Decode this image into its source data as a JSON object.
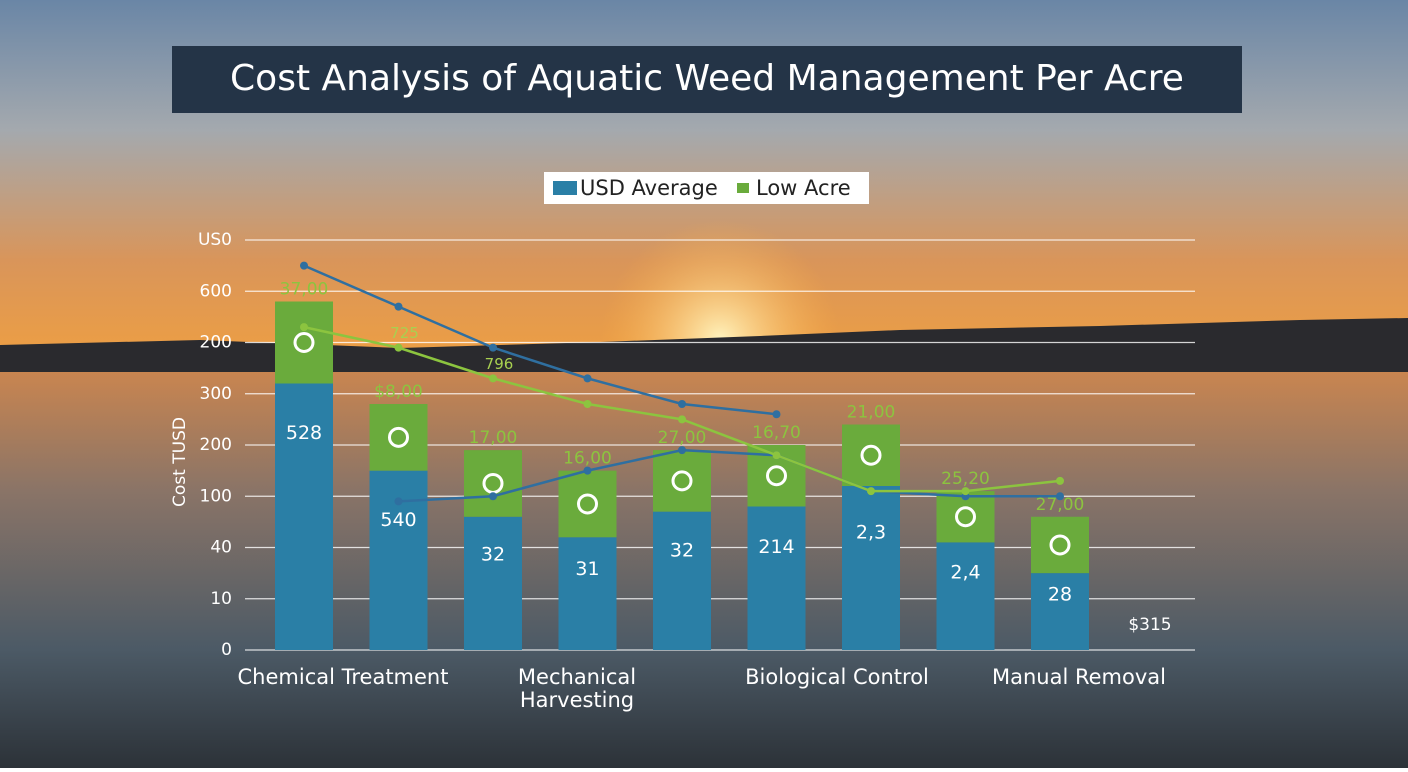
{
  "chart_data": {
    "type": "bar",
    "title": "Cost Analysis of Aquatic Weed Management Per Acre",
    "y_axis_title": "Cost TUSD",
    "categories": [
      null,
      null,
      null,
      null,
      null,
      null,
      null,
      null,
      null
    ],
    "group_labels": [
      "Chemical Treatment",
      "Mechanical Harvesting",
      "Biological Control",
      "Manual Removal"
    ],
    "series": [
      {
        "name": "USD Average",
        "color": "#2a7fa6",
        "values": [
          5.2,
          3.5,
          2.6,
          2.2,
          2.7,
          2.8,
          3.2,
          2.1,
          1.5
        ],
        "bar_labels": [
          "528",
          "540",
          "32",
          "31",
          "32",
          "214",
          "2,3",
          "2,4",
          "28"
        ]
      },
      {
        "name": "Low Acre",
        "color": "#6aab3c",
        "values": [
          1.6,
          1.3,
          1.3,
          1.3,
          1.2,
          1.2,
          1.2,
          1.0,
          1.1
        ],
        "bar_labels": [
          "37,00",
          "$8,00",
          "17,00",
          "16,00",
          "27,00",
          "16,70",
          "21,00",
          "25,20",
          "27,00"
        ]
      }
    ],
    "lines": [
      {
        "color": "#2f6fa0",
        "values": [
          7.5,
          6.7,
          5.9,
          5.3,
          4.8,
          4.6,
          null,
          null,
          null
        ]
      },
      {
        "color": "#2f6fa0",
        "values": [
          null,
          2.9,
          3.0,
          3.5,
          3.9,
          3.8,
          3.1,
          3.0,
          3.0
        ]
      },
      {
        "color": "#8cc43f",
        "values": [
          6.3,
          5.9,
          5.3,
          4.8,
          4.5,
          3.8,
          3.1,
          3.1,
          3.3
        ]
      }
    ],
    "line_labels": [
      "725",
      "796"
    ],
    "annotation": "$315",
    "ylim": [
      0,
      8
    ],
    "yticks": [
      0,
      {
        "value": 1,
        "label": "10"
      },
      {
        "value": 2,
        "label": "40"
      },
      {
        "value": 3,
        "label": "100"
      },
      {
        "value": 4,
        "label": "200"
      },
      {
        "value": 5,
        "label": "300"
      },
      {
        "value": 6,
        "label": "200"
      },
      {
        "value": 7,
        "label": "600"
      },
      {
        "value": 8,
        "label": "US0"
      }
    ],
    "grid": true
  }
}
